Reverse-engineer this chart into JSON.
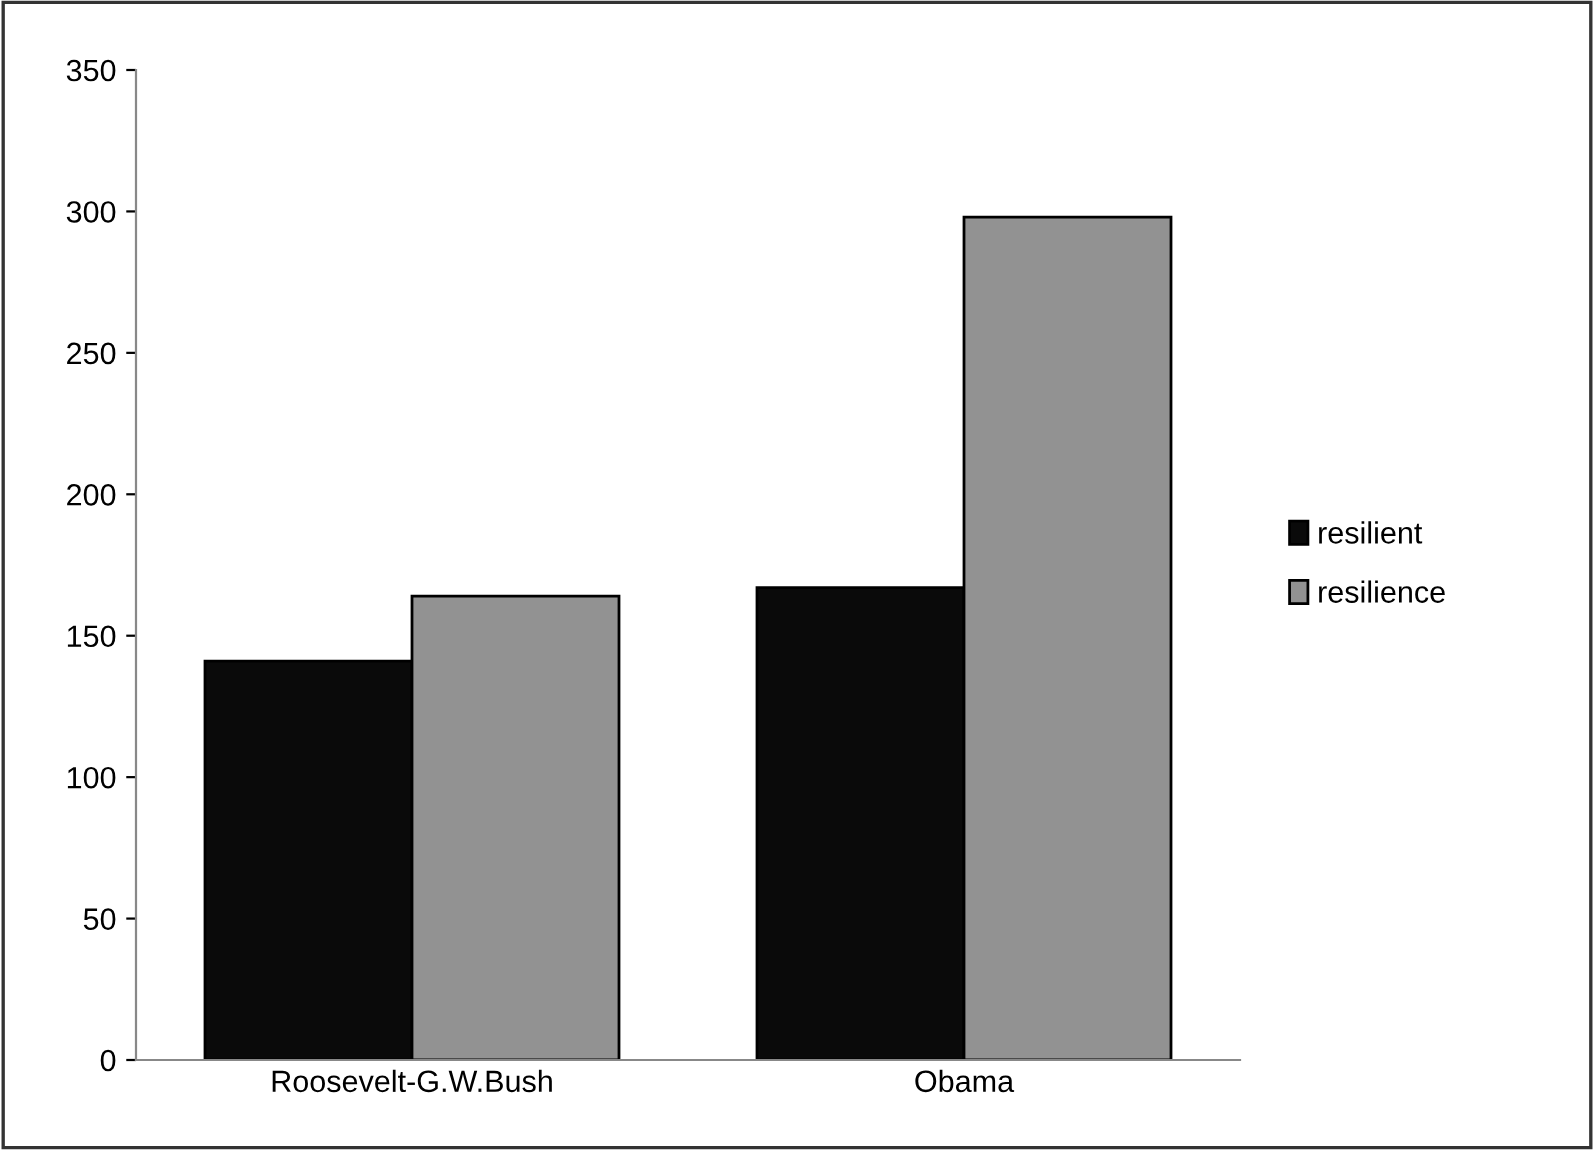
{
  "chart_data": {
    "type": "bar",
    "categories": [
      "Roosevelt-G.W.Bush",
      "Obama"
    ],
    "series": [
      {
        "name": "resilient",
        "color": "#0a0a0a",
        "values": [
          141,
          167
        ]
      },
      {
        "name": "resilience",
        "color": "#929292",
        "values": [
          164,
          298
        ]
      }
    ],
    "ylim": [
      0,
      350
    ],
    "yticks": [
      0,
      50,
      100,
      150,
      200,
      250,
      300,
      350
    ],
    "grid": false,
    "legend": "right"
  }
}
